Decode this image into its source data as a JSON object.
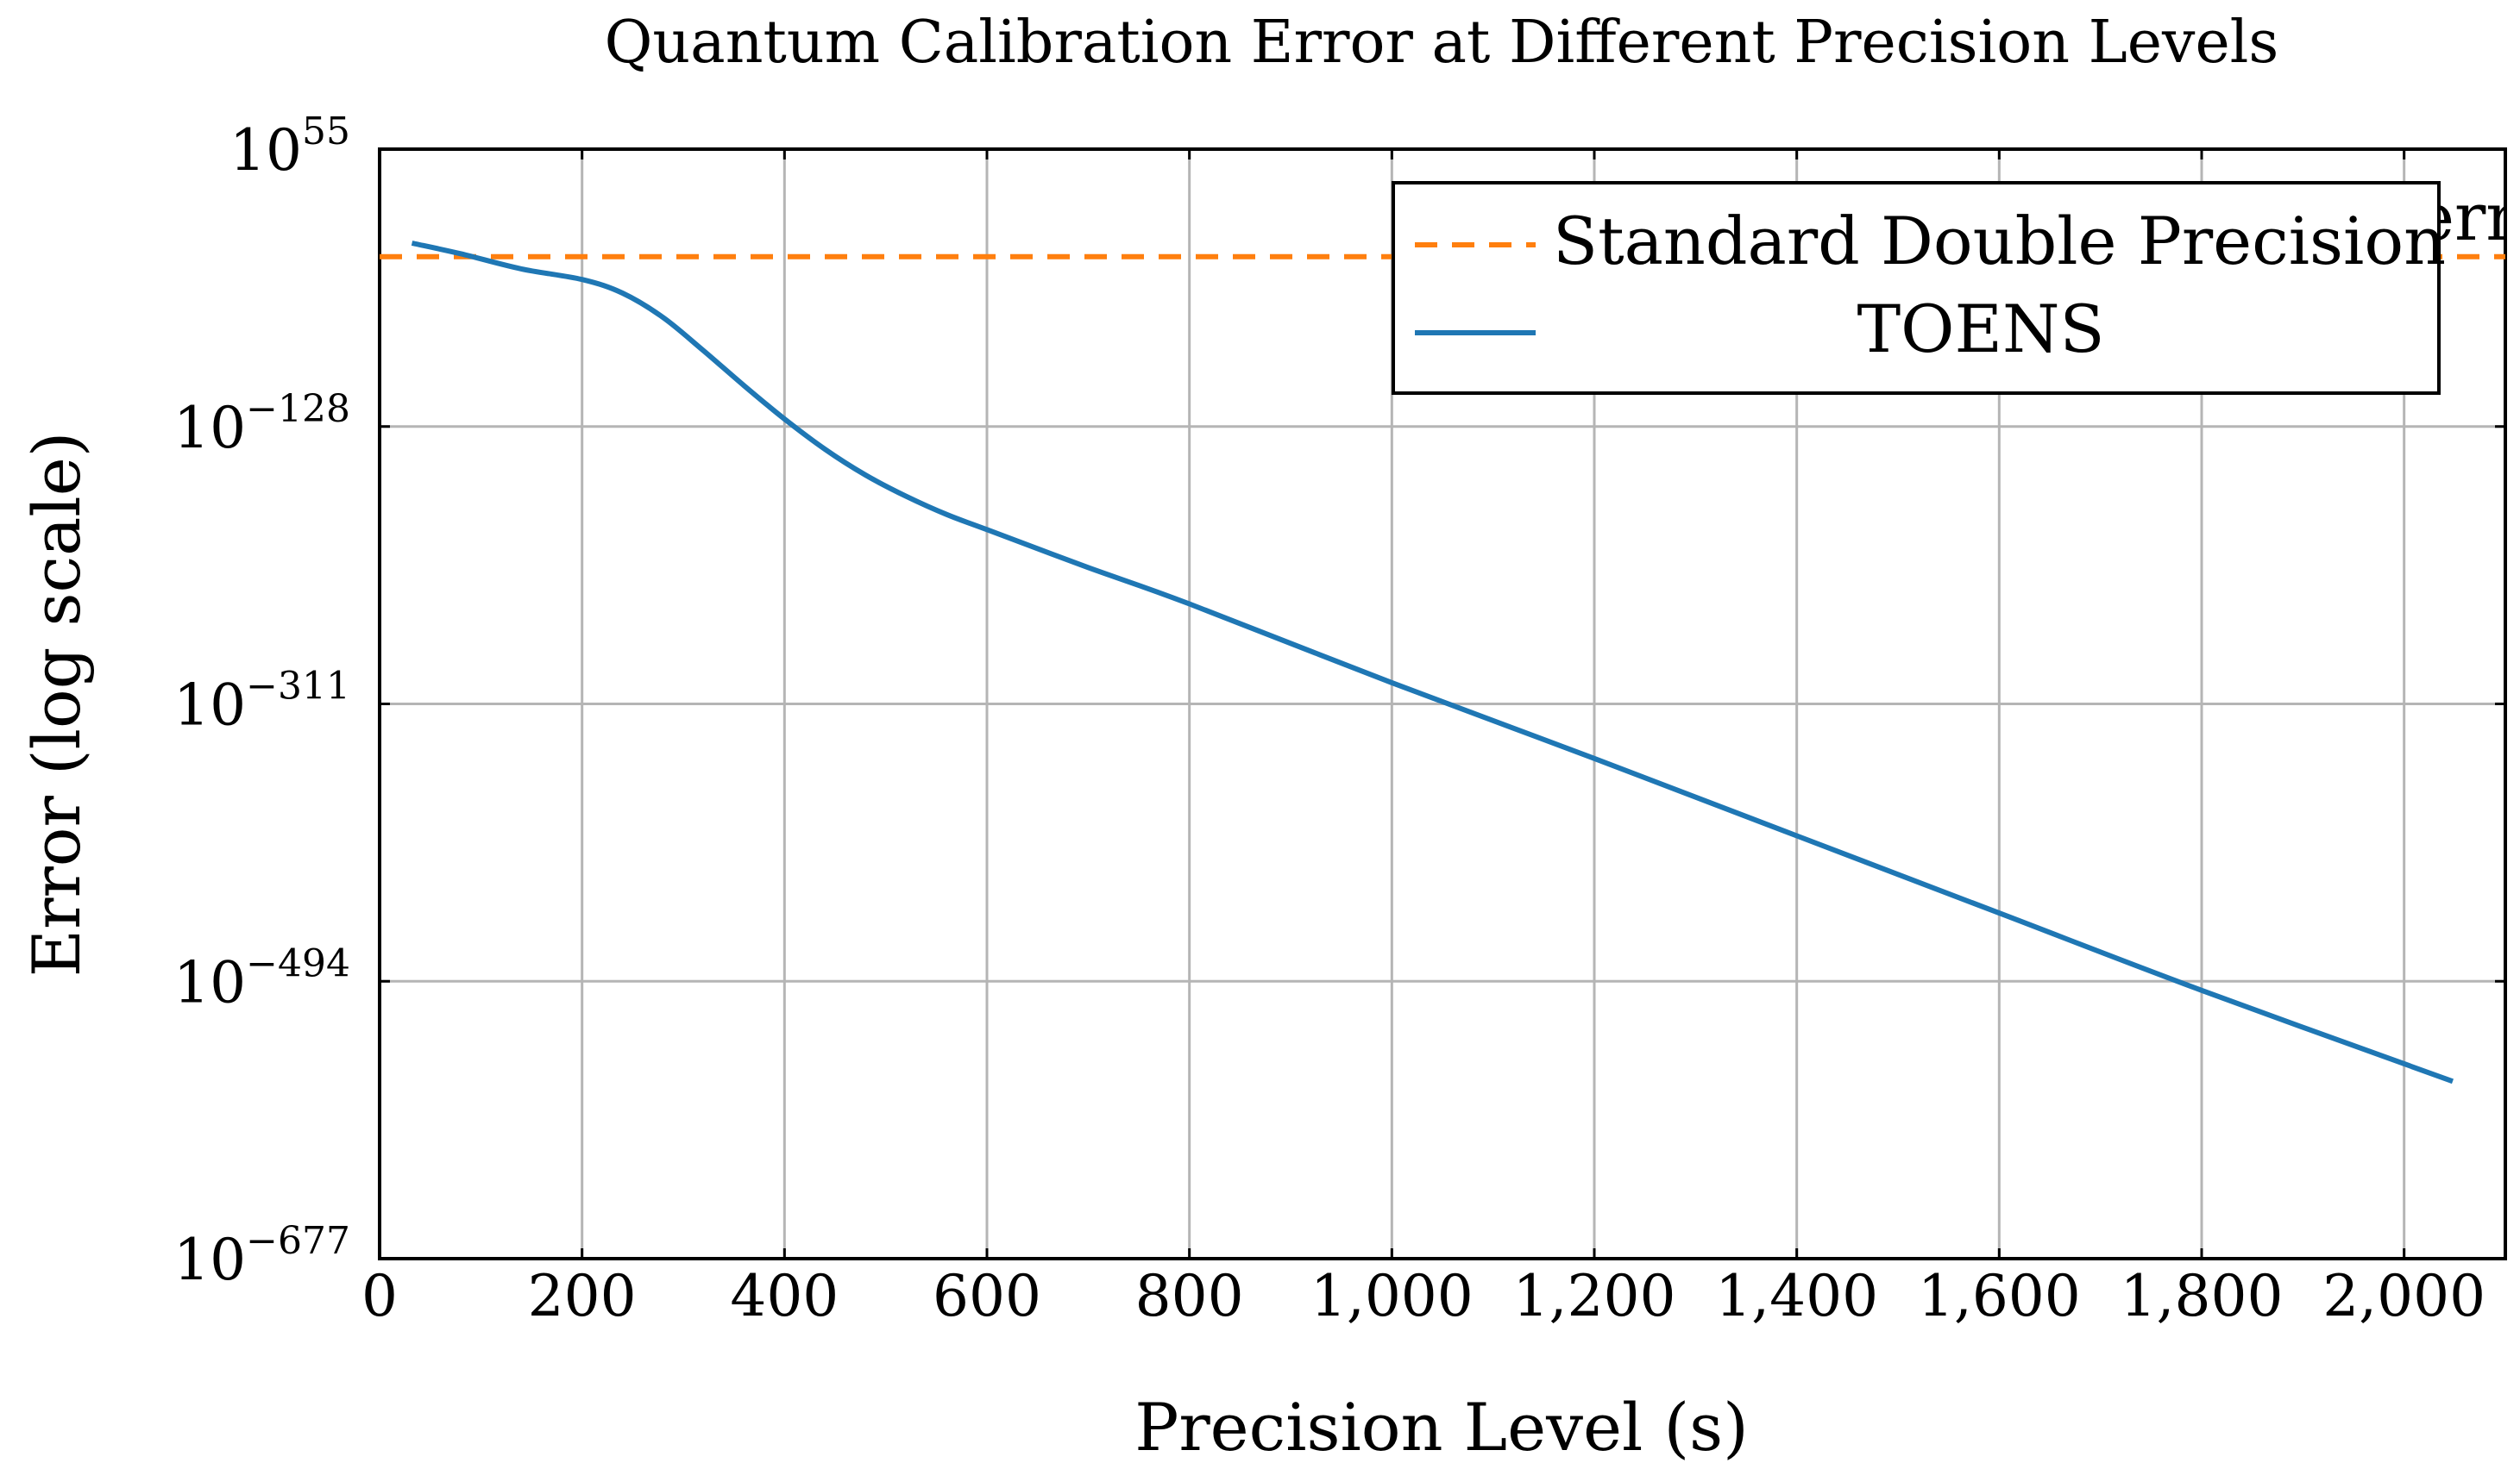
{
  "chart_data": {
    "type": "line",
    "title": "Quantum Calibration Error at Different Precision Levels",
    "xlabel": "Precision Level (s)",
    "ylabel": "Error (log scale)",
    "yscale": "log10",
    "xlim": [
      0,
      2100
    ],
    "ylim_exponent": [
      -677,
      55
    ],
    "x_ticks": [
      0,
      200,
      400,
      600,
      800,
      1000,
      1200,
      1400,
      1600,
      1800,
      2000
    ],
    "x_tick_labels": [
      "0",
      "200",
      "400",
      "600",
      "800",
      "1,000",
      "1,200",
      "1,400",
      "1,600",
      "1,800",
      "2,000"
    ],
    "y_tick_exponents": [
      55,
      -128,
      -311,
      -494,
      -677
    ],
    "y_tick_labels": [
      {
        "base": "10",
        "exp": "55"
      },
      {
        "base": "10",
        "exp": "−128"
      },
      {
        "base": "10",
        "exp": "−311"
      },
      {
        "base": "10",
        "exp": "−494"
      },
      {
        "base": "10",
        "exp": "−677"
      }
    ],
    "grid": true,
    "legend_position": "top-right",
    "clipped_annotation": "err",
    "series": [
      {
        "name": "Standard Double Precision",
        "color": "#ff7f0e",
        "style": "dashed",
        "log10_values": {
          "x": [
            0,
            2100
          ],
          "y": [
            -16,
            -16
          ]
        }
      },
      {
        "name": "TOENS",
        "color": "#1f77b4",
        "style": "solid",
        "log10_values": {
          "x": [
            32,
            80,
            140,
            200,
            240,
            280,
            320,
            360,
            400,
            440,
            480,
            520,
            560,
            600,
            700,
            800,
            1000,
            1200,
            1400,
            1600,
            1800,
            2048
          ],
          "y": [
            -7,
            -14,
            -24,
            -31,
            -40,
            -56,
            -78,
            -101,
            -123,
            -143,
            -160,
            -174,
            -186,
            -196,
            -221,
            -245,
            -297,
            -347,
            -398,
            -449,
            -500,
            -560
          ]
        }
      }
    ]
  }
}
